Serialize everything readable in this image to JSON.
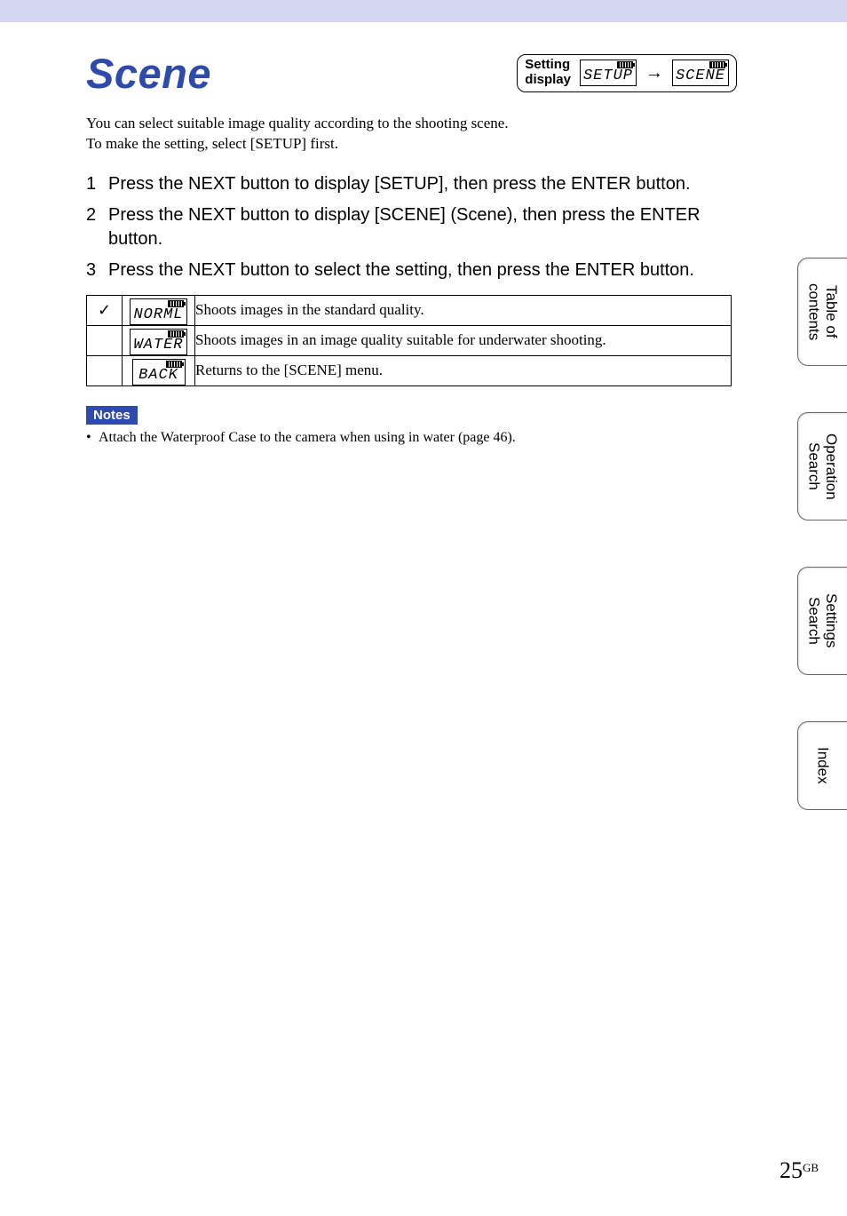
{
  "colors": {
    "accent": "#2e4aaa",
    "topbar": "#d5d7f2",
    "text": "#000000",
    "bg": "#ffffff"
  },
  "title": "Scene",
  "setting_display": {
    "label_line1": "Setting",
    "label_line2": "display",
    "lcd1": "SETUP",
    "arrow": "→",
    "lcd2": "SCENE"
  },
  "intro_line1": "You can select suitable image quality according to the shooting scene.",
  "intro_line2": "To make the setting, select [SETUP] first.",
  "steps": [
    {
      "num": "1",
      "text": "Press the NEXT button to display [SETUP], then press the ENTER button."
    },
    {
      "num": "2",
      "text": "Press the NEXT button to display [SCENE] (Scene), then press the ENTER button."
    },
    {
      "num": "3",
      "text": "Press the NEXT button to select the setting, then press the ENTER button."
    }
  ],
  "options": [
    {
      "checked": true,
      "lcd": "NORML",
      "desc": "Shoots images in the standard quality."
    },
    {
      "checked": false,
      "lcd": "WATER",
      "desc": "Shoots images in an image quality suitable for underwater shooting."
    },
    {
      "checked": false,
      "lcd": "BACK",
      "desc": "Returns to the [SCENE] menu."
    }
  ],
  "notes": {
    "label": "Notes",
    "items": [
      "Attach the Waterproof Case to the camera when using in water (page 46)."
    ]
  },
  "side_tabs": [
    "Table of\ncontents",
    "Operation\nSearch",
    "Settings\nSearch",
    "Index"
  ],
  "page_number": "25",
  "page_suffix": "GB",
  "checkmark": "✓"
}
